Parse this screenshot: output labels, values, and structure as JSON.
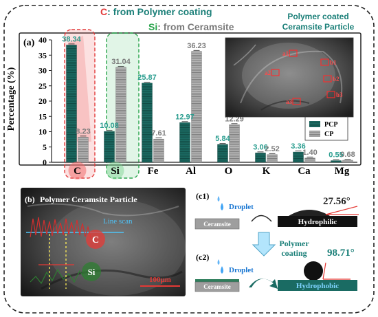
{
  "header": {
    "c_label": "C",
    "c_text": ": from Polymer coating",
    "si_label": "Si",
    "si_text": ": from Ceramsite",
    "inset_title": [
      "Polymer coated",
      "Ceramsite Particle"
    ]
  },
  "chart_data": {
    "type": "bar",
    "panel_label": "(a)",
    "ylabel": "Percentage (%)",
    "xlabel": "",
    "ylim": [
      0,
      40
    ],
    "yticks": [
      0,
      5,
      10,
      15,
      20,
      25,
      30,
      35,
      40
    ],
    "categories": [
      "C",
      "Si",
      "Fe",
      "Al",
      "O",
      "K",
      "Ca",
      "Mg"
    ],
    "series": [
      {
        "name": "PCP",
        "values": [
          38.34,
          10.08,
          25.87,
          12.97,
          5.84,
          3.06,
          3.36,
          0.55
        ]
      },
      {
        "name": "CP",
        "values": [
          8.23,
          31.04,
          7.61,
          36.23,
          12.29,
          2.52,
          1.4,
          0.68
        ]
      }
    ],
    "labels": {
      "PCP": [
        "38.34",
        "10.08",
        "25.87",
        "12.97",
        "5.84",
        "3.06",
        "3.36",
        "0.55"
      ],
      "CP": [
        "8.23",
        "31.04",
        "7.61",
        "36.23",
        "12.29",
        "2.52",
        "1.40",
        "0.68"
      ]
    },
    "legend_placement": "bottom-right",
    "grid": false
  },
  "colors": {
    "pcp": "#1c6b63",
    "cp": "#a8a8a8",
    "pcp_label": "#2a9d8f",
    "cp_label": "#7a7a7a",
    "c_highlight": "#e23b3b",
    "si_highlight": "#27a34a",
    "accent_teal": "#1a7f78"
  },
  "sem_inset": {
    "markers": [
      "a1",
      "a2",
      "a3",
      "b1",
      "b2",
      "b3"
    ]
  },
  "panel_b": {
    "label": "(b)",
    "title": "Polymer Ceramsite Particle",
    "line_scan": "Line scan",
    "c_tag": "C",
    "si_tag": "Si",
    "scale_bar": "100μm"
  },
  "panel_c": {
    "c1_label": "(c1)",
    "c2_label": "(c2)",
    "droplet": "Droplet",
    "ceramsite": "Ceramsite",
    "hydrophilic": "Hydrophilic",
    "hydrophobic": "Hydrophobic",
    "angle1": "27.56°",
    "angle2": "98.71°",
    "arrow_text": [
      "Polymer",
      "coating"
    ]
  }
}
